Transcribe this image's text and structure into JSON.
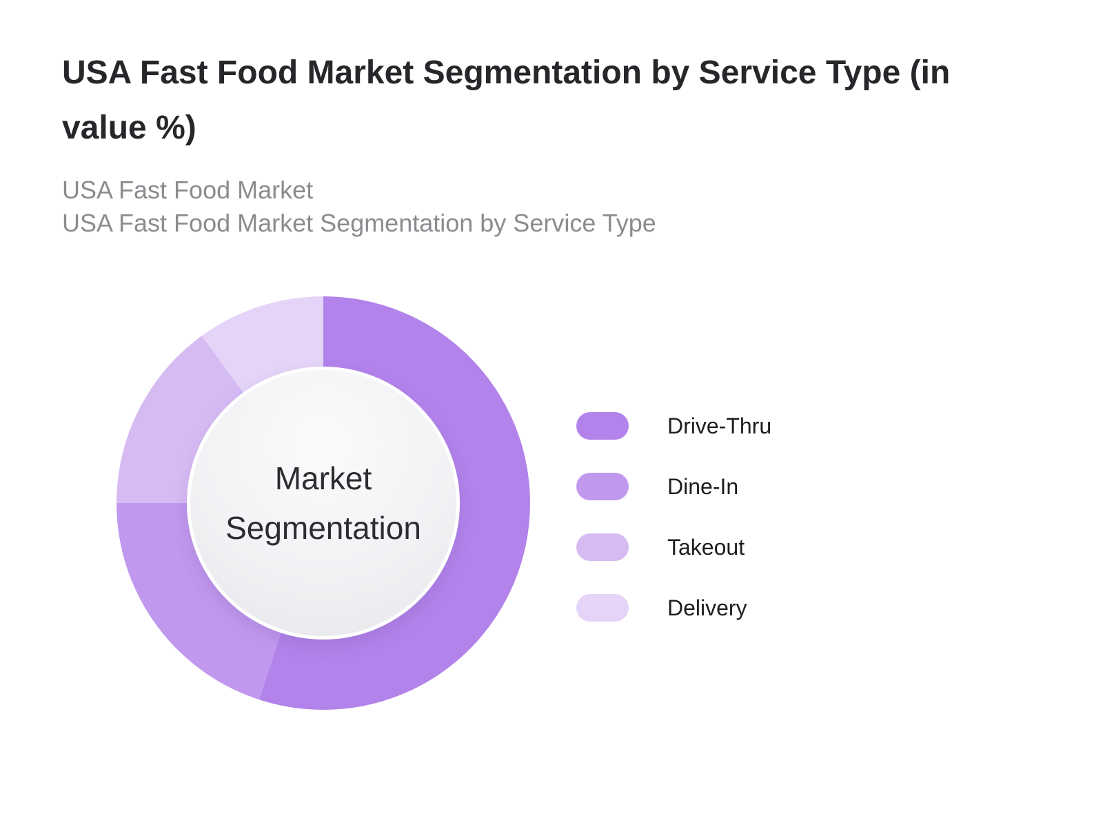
{
  "header": {
    "title": "USA Fast Food Market Segmentation by Service Type (in value %)",
    "title_lines": [
      "USA Fast Food Market Segmentation by Service Type (in",
      "value %)"
    ],
    "subtitle_lines": [
      "USA Fast Food Market",
      "USA Fast Food Market Segmentation by Service Type"
    ]
  },
  "colors": {
    "background": "#ffffff",
    "title_text": "#27272b",
    "subtitle_text": "#8b8b90",
    "legend_text": "#1d1d21",
    "center_text": "#2d2d31"
  },
  "chart_data": {
    "type": "pie",
    "subtype": "donut",
    "title": "USA Fast Food Market Segmentation by Service Type (in value %)",
    "center_label": "Market Segmentation",
    "center_label_lines": [
      "Market",
      "Segmentation"
    ],
    "start_angle_deg": 0,
    "direction": "clockwise",
    "values_labeled_on_chart": false,
    "legend_position": "right",
    "segments": [
      {
        "label": "Drive-Thru",
        "value": 55,
        "color": "#b283ea"
      },
      {
        "label": "Dine-In",
        "value": 20,
        "color": "#c098ee"
      },
      {
        "label": "Takeout",
        "value": 15,
        "color": "#d6bbf3"
      },
      {
        "label": "Delivery",
        "value": 10,
        "color": "#e5d4f8"
      }
    ]
  }
}
